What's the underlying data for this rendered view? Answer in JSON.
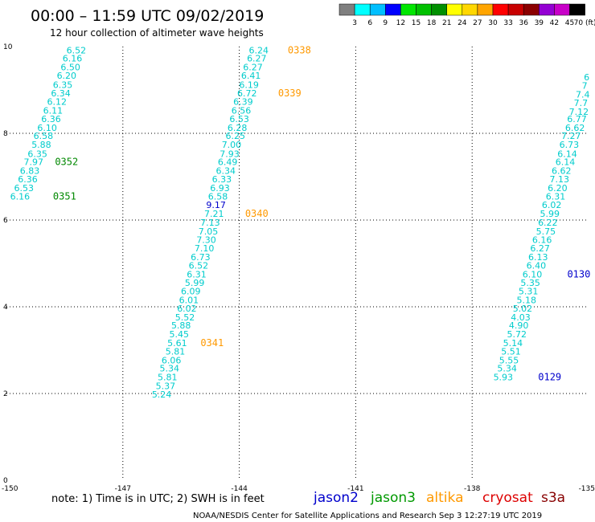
{
  "header": {
    "title": "00:00 – 11:59 UTC 09/02/2019",
    "subtitle": "12 hour collection of altimeter wave heights"
  },
  "legend": {
    "labels": [
      "3",
      "6",
      "9",
      "12",
      "15",
      "18",
      "21",
      "24",
      "27",
      "30",
      "33",
      "36",
      "39",
      "42",
      "45",
      "70 (ft)"
    ],
    "colors": [
      "#7f7f7f",
      "#00ffff",
      "#00bfff",
      "#0000ff",
      "#00e600",
      "#00c000",
      "#008f00",
      "#ffff00",
      "#ffd700",
      "#ffa500",
      "#ff0000",
      "#c80000",
      "#8b0000",
      "#9400d3",
      "#c800c8",
      "#000000"
    ]
  },
  "footer": {
    "note": "note: 1) Time is in UTC; 2) SWH is in feet",
    "satellites": [
      {
        "name": "jason2",
        "color": "#0000cc"
      },
      {
        "name": "jason3",
        "color": "#009900"
      },
      {
        "name": "altika",
        "color": "#ff9900"
      },
      {
        "name": "cryosat",
        "color": "#dd0000"
      },
      {
        "name": "s3a",
        "color": "#880000"
      }
    ],
    "credit": "NOAA/NESDIS Center for Satellite Applications and Research   Sep  3 12:27:19 UTC 2019"
  },
  "chart_data": {
    "type": "scatter",
    "xlim": [
      -150,
      -135
    ],
    "ylim": [
      0,
      10
    ],
    "x_ticks": [
      "-150",
      "-147",
      "-144",
      "-141",
      "-138",
      "-135"
    ],
    "y_ticks": [
      "0",
      "2",
      "4",
      "6",
      "8",
      "10"
    ],
    "grid": true,
    "colors": {
      "cyan": "#00cccc",
      "blue": "#0000cc",
      "green": "#008800",
      "orange": "#ff9900"
    },
    "series": [
      {
        "name": "jason3",
        "label_color": "green",
        "points": [
          {
            "x": -148.2,
            "y": 9.92,
            "v": "6.52"
          },
          {
            "x": -148.3,
            "y": 9.73,
            "v": "6.16"
          },
          {
            "x": -148.35,
            "y": 9.53,
            "v": "6.50"
          },
          {
            "x": -148.45,
            "y": 9.33,
            "v": "6.20"
          },
          {
            "x": -148.55,
            "y": 9.12,
            "v": "6.35"
          },
          {
            "x": -148.6,
            "y": 8.93,
            "v": "6.34"
          },
          {
            "x": -148.7,
            "y": 8.73,
            "v": "6.12"
          },
          {
            "x": -148.8,
            "y": 8.53,
            "v": "6.11"
          },
          {
            "x": -148.85,
            "y": 8.33,
            "v": "6.36"
          },
          {
            "x": -148.95,
            "y": 8.13,
            "v": "6.10"
          },
          {
            "x": -149.05,
            "y": 7.94,
            "v": "6.58"
          },
          {
            "x": -149.1,
            "y": 7.74,
            "v": "5.88"
          },
          {
            "x": -149.2,
            "y": 7.53,
            "v": "6.35"
          },
          {
            "x": -149.3,
            "y": 7.34,
            "v": "7.97"
          },
          {
            "x": -149.4,
            "y": 7.14,
            "v": "6.83"
          },
          {
            "x": -149.45,
            "y": 6.94,
            "v": "6.36"
          },
          {
            "x": -149.55,
            "y": 6.74,
            "v": "6.53"
          },
          {
            "x": -149.65,
            "y": 6.55,
            "v": "6.16"
          }
        ],
        "time_labels": [
          {
            "x": -148.75,
            "y": 7.34,
            "text": "0352"
          },
          {
            "x": -148.8,
            "y": 6.55,
            "text": "0351"
          }
        ]
      },
      {
        "name": "altika",
        "label_color": "orange",
        "points": [
          {
            "x": -143.5,
            "y": 9.92,
            "v": "6.24"
          },
          {
            "x": -143.55,
            "y": 9.73,
            "v": "6.27"
          },
          {
            "x": -143.65,
            "y": 9.53,
            "v": "6.27"
          },
          {
            "x": -143.7,
            "y": 9.33,
            "v": "6.41"
          },
          {
            "x": -143.75,
            "y": 9.12,
            "v": "6.19"
          },
          {
            "x": -143.8,
            "y": 8.93,
            "v": "6.72"
          },
          {
            "x": -143.9,
            "y": 8.73,
            "v": "6.39"
          },
          {
            "x": -143.95,
            "y": 8.53,
            "v": "6.56"
          },
          {
            "x": -144.0,
            "y": 8.33,
            "v": "6.53"
          },
          {
            "x": -144.05,
            "y": 8.13,
            "v": "6.28"
          },
          {
            "x": -144.1,
            "y": 7.94,
            "v": "6.25"
          },
          {
            "x": -144.2,
            "y": 7.74,
            "v": "7.00"
          },
          {
            "x": -144.25,
            "y": 7.53,
            "v": "7.93"
          },
          {
            "x": -144.3,
            "y": 7.34,
            "v": "6.49"
          },
          {
            "x": -144.35,
            "y": 7.14,
            "v": "6.34"
          },
          {
            "x": -144.45,
            "y": 6.94,
            "v": "6.33"
          },
          {
            "x": -144.5,
            "y": 6.74,
            "v": "6.93"
          },
          {
            "x": -144.55,
            "y": 6.55,
            "v": "6.58"
          },
          {
            "x": -144.6,
            "y": 6.35,
            "v": "9.17",
            "color": "blue"
          },
          {
            "x": -144.65,
            "y": 6.15,
            "v": "7.21"
          },
          {
            "x": -144.75,
            "y": 5.94,
            "v": "7.13"
          },
          {
            "x": -144.8,
            "y": 5.74,
            "v": "7.05"
          },
          {
            "x": -144.85,
            "y": 5.55,
            "v": "7.30"
          },
          {
            "x": -144.9,
            "y": 5.35,
            "v": "7.10"
          },
          {
            "x": -145.0,
            "y": 5.15,
            "v": "6.73"
          },
          {
            "x": -145.05,
            "y": 4.95,
            "v": "6.52"
          },
          {
            "x": -145.1,
            "y": 4.75,
            "v": "6.31"
          },
          {
            "x": -145.15,
            "y": 4.56,
            "v": "5.99"
          },
          {
            "x": -145.25,
            "y": 4.36,
            "v": "6.09"
          },
          {
            "x": -145.3,
            "y": 4.16,
            "v": "6.01"
          },
          {
            "x": -145.35,
            "y": 3.96,
            "v": "6.02"
          },
          {
            "x": -145.4,
            "y": 3.76,
            "v": "5.52"
          },
          {
            "x": -145.5,
            "y": 3.57,
            "v": "5.88"
          },
          {
            "x": -145.55,
            "y": 3.37,
            "v": "5.45"
          },
          {
            "x": -145.6,
            "y": 3.17,
            "v": "5.61"
          },
          {
            "x": -145.65,
            "y": 2.97,
            "v": "5.81"
          },
          {
            "x": -145.75,
            "y": 2.77,
            "v": "6.06"
          },
          {
            "x": -145.8,
            "y": 2.58,
            "v": "5.34"
          },
          {
            "x": -145.85,
            "y": 2.38,
            "v": "5.81"
          },
          {
            "x": -145.9,
            "y": 2.18,
            "v": "5.37"
          },
          {
            "x": -146.0,
            "y": 1.98,
            "v": "5.24"
          }
        ],
        "time_labels": [
          {
            "x": -142.75,
            "y": 9.92,
            "text": "0338"
          },
          {
            "x": -143.0,
            "y": 8.93,
            "text": "0339"
          },
          {
            "x": -143.85,
            "y": 6.15,
            "text": "0340"
          },
          {
            "x": -145.0,
            "y": 3.17,
            "text": "0341"
          }
        ]
      },
      {
        "name": "jason2",
        "label_color": "blue",
        "points": [
          {
            "x": -135.05,
            "y": 9.3,
            "v": "6"
          },
          {
            "x": -135.1,
            "y": 9.1,
            "v": "7"
          },
          {
            "x": -135.15,
            "y": 8.9,
            "v": "7.4"
          },
          {
            "x": -135.2,
            "y": 8.7,
            "v": "7.7"
          },
          {
            "x": -135.25,
            "y": 8.5,
            "v": "7.12"
          },
          {
            "x": -135.3,
            "y": 8.33,
            "v": "6.77"
          },
          {
            "x": -135.35,
            "y": 8.13,
            "v": "6.62"
          },
          {
            "x": -135.45,
            "y": 7.94,
            "v": "7.27"
          },
          {
            "x": -135.5,
            "y": 7.74,
            "v": "6.73"
          },
          {
            "x": -135.55,
            "y": 7.53,
            "v": "6.14"
          },
          {
            "x": -135.6,
            "y": 7.34,
            "v": "6.14"
          },
          {
            "x": -135.7,
            "y": 7.14,
            "v": "6.62"
          },
          {
            "x": -135.75,
            "y": 6.94,
            "v": "7.13"
          },
          {
            "x": -135.8,
            "y": 6.74,
            "v": "6.20"
          },
          {
            "x": -135.85,
            "y": 6.55,
            "v": "6.31"
          },
          {
            "x": -135.95,
            "y": 6.35,
            "v": "6.02"
          },
          {
            "x": -136.0,
            "y": 6.15,
            "v": "5.99"
          },
          {
            "x": -136.05,
            "y": 5.94,
            "v": "6.22"
          },
          {
            "x": -136.1,
            "y": 5.74,
            "v": "5.75"
          },
          {
            "x": -136.2,
            "y": 5.55,
            "v": "6.16"
          },
          {
            "x": -136.25,
            "y": 5.35,
            "v": "6.27"
          },
          {
            "x": -136.3,
            "y": 5.15,
            "v": "6.13"
          },
          {
            "x": -136.35,
            "y": 4.95,
            "v": "6.40"
          },
          {
            "x": -136.45,
            "y": 4.75,
            "v": "6.10"
          },
          {
            "x": -136.5,
            "y": 4.56,
            "v": "5.35"
          },
          {
            "x": -136.55,
            "y": 4.36,
            "v": "5.31"
          },
          {
            "x": -136.6,
            "y": 4.16,
            "v": "5.18"
          },
          {
            "x": -136.7,
            "y": 3.96,
            "v": "5.02"
          },
          {
            "x": -136.75,
            "y": 3.76,
            "v": "4.03"
          },
          {
            "x": -136.8,
            "y": 3.57,
            "v": "4.90"
          },
          {
            "x": -136.85,
            "y": 3.37,
            "v": "5.72"
          },
          {
            "x": -136.95,
            "y": 3.17,
            "v": "5.14"
          },
          {
            "x": -137.0,
            "y": 2.97,
            "v": "5.51"
          },
          {
            "x": -137.05,
            "y": 2.77,
            "v": "5.55"
          },
          {
            "x": -137.1,
            "y": 2.58,
            "v": "5.34"
          },
          {
            "x": -137.2,
            "y": 2.38,
            "v": "5.93"
          }
        ],
        "time_labels": [
          {
            "x": -135.55,
            "y": 4.75,
            "text": "0130"
          },
          {
            "x": -136.3,
            "y": 2.38,
            "text": "0129"
          }
        ]
      }
    ]
  }
}
